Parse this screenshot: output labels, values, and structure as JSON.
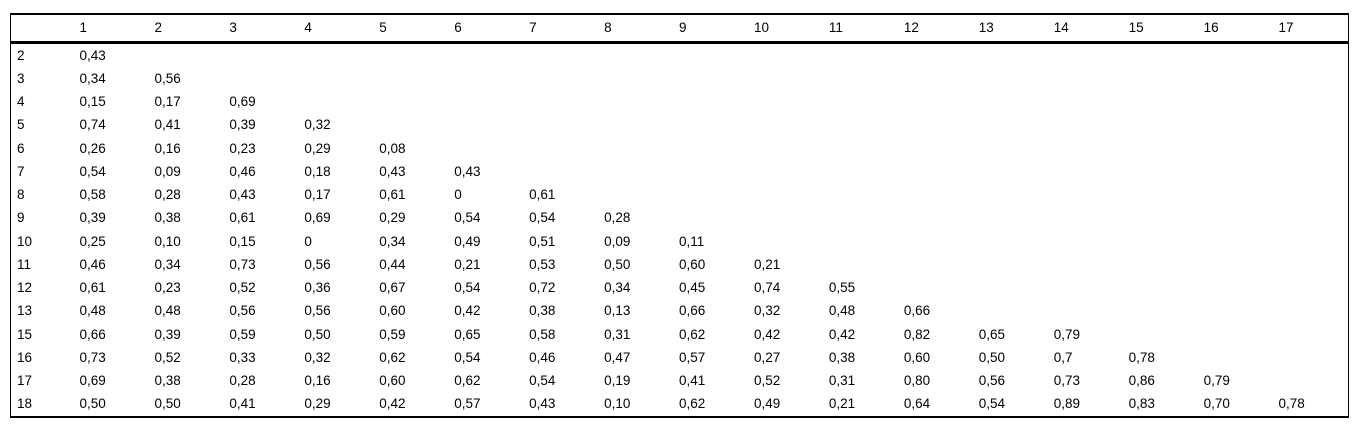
{
  "chart_data": {
    "type": "table",
    "corner_label": "",
    "column_headers": [
      "1",
      "2",
      "3",
      "4",
      "5",
      "6",
      "7",
      "8",
      "9",
      "10",
      "11",
      "12",
      "13",
      "14",
      "15",
      "16",
      "17"
    ],
    "rows": [
      {
        "label": "2",
        "cells": [
          "0,43"
        ]
      },
      {
        "label": "3",
        "cells": [
          "0,34",
          "0,56"
        ]
      },
      {
        "label": "4",
        "cells": [
          "0,15",
          "0,17",
          "0,69"
        ]
      },
      {
        "label": "5",
        "cells": [
          "0,74",
          "0,41",
          "0,39",
          "0,32"
        ]
      },
      {
        "label": "6",
        "cells": [
          "0,26",
          "0,16",
          "0,23",
          "0,29",
          "0,08"
        ]
      },
      {
        "label": "7",
        "cells": [
          "0,54",
          "0,09",
          "0,46",
          "0,18",
          "0,43",
          "0,43"
        ]
      },
      {
        "label": "8",
        "cells": [
          "0,58",
          "0,28",
          "0,43",
          "0,17",
          "0,61",
          "0",
          "0,61"
        ]
      },
      {
        "label": "9",
        "cells": [
          "0,39",
          "0,38",
          "0,61",
          "0,69",
          "0,29",
          "0,54",
          "0,54",
          "0,28"
        ]
      },
      {
        "label": "10",
        "cells": [
          "0,25",
          "0,10",
          "0,15",
          "0",
          "0,34",
          "0,49",
          "0,51",
          "0,09",
          "0,11"
        ]
      },
      {
        "label": "11",
        "cells": [
          "0,46",
          "0,34",
          "0,73",
          "0,56",
          "0,44",
          "0,21",
          "0,53",
          "0,50",
          "0,60",
          "0,21"
        ]
      },
      {
        "label": "12",
        "cells": [
          "0,61",
          "0,23",
          "0,52",
          "0,36",
          "0,67",
          "0,54",
          "0,72",
          "0,34",
          "0,45",
          "0,74",
          "0,55"
        ]
      },
      {
        "label": "13",
        "cells": [
          "0,48",
          "0,48",
          "0,56",
          "0,56",
          "0,60",
          "0,42",
          "0,38",
          "0,13",
          "0,66",
          "0,32",
          "0,48",
          "0,66"
        ]
      },
      {
        "label": "15",
        "cells": [
          "0,66",
          "0,39",
          "0,59",
          "0,50",
          "0,59",
          "0,65",
          "0,58",
          "0,31",
          "0,62",
          "0,42",
          "0,42",
          "0,82",
          "0,65",
          "0,79"
        ]
      },
      {
        "label": "16",
        "cells": [
          "0,73",
          "0,52",
          "0,33",
          "0,32",
          "0,62",
          "0,54",
          "0,46",
          "0,47",
          "0,57",
          "0,27",
          "0,38",
          "0,60",
          "0,50",
          "0,7",
          "0,78"
        ]
      },
      {
        "label": "17",
        "cells": [
          "0,69",
          "0,38",
          "0,28",
          "0,16",
          "0,60",
          "0,62",
          "0,54",
          "0,19",
          "0,41",
          "0,52",
          "0,31",
          "0,80",
          "0,56",
          "0,73",
          "0,86",
          "0,79"
        ]
      },
      {
        "label": "18",
        "cells": [
          "0,50",
          "0,50",
          "0,41",
          "0,29",
          "0,42",
          "0,57",
          "0,43",
          "0,10",
          "0,62",
          "0,49",
          "0,21",
          "0,64",
          "0,54",
          "0,89",
          "0,83",
          "0,70",
          "0,78"
        ]
      }
    ]
  }
}
